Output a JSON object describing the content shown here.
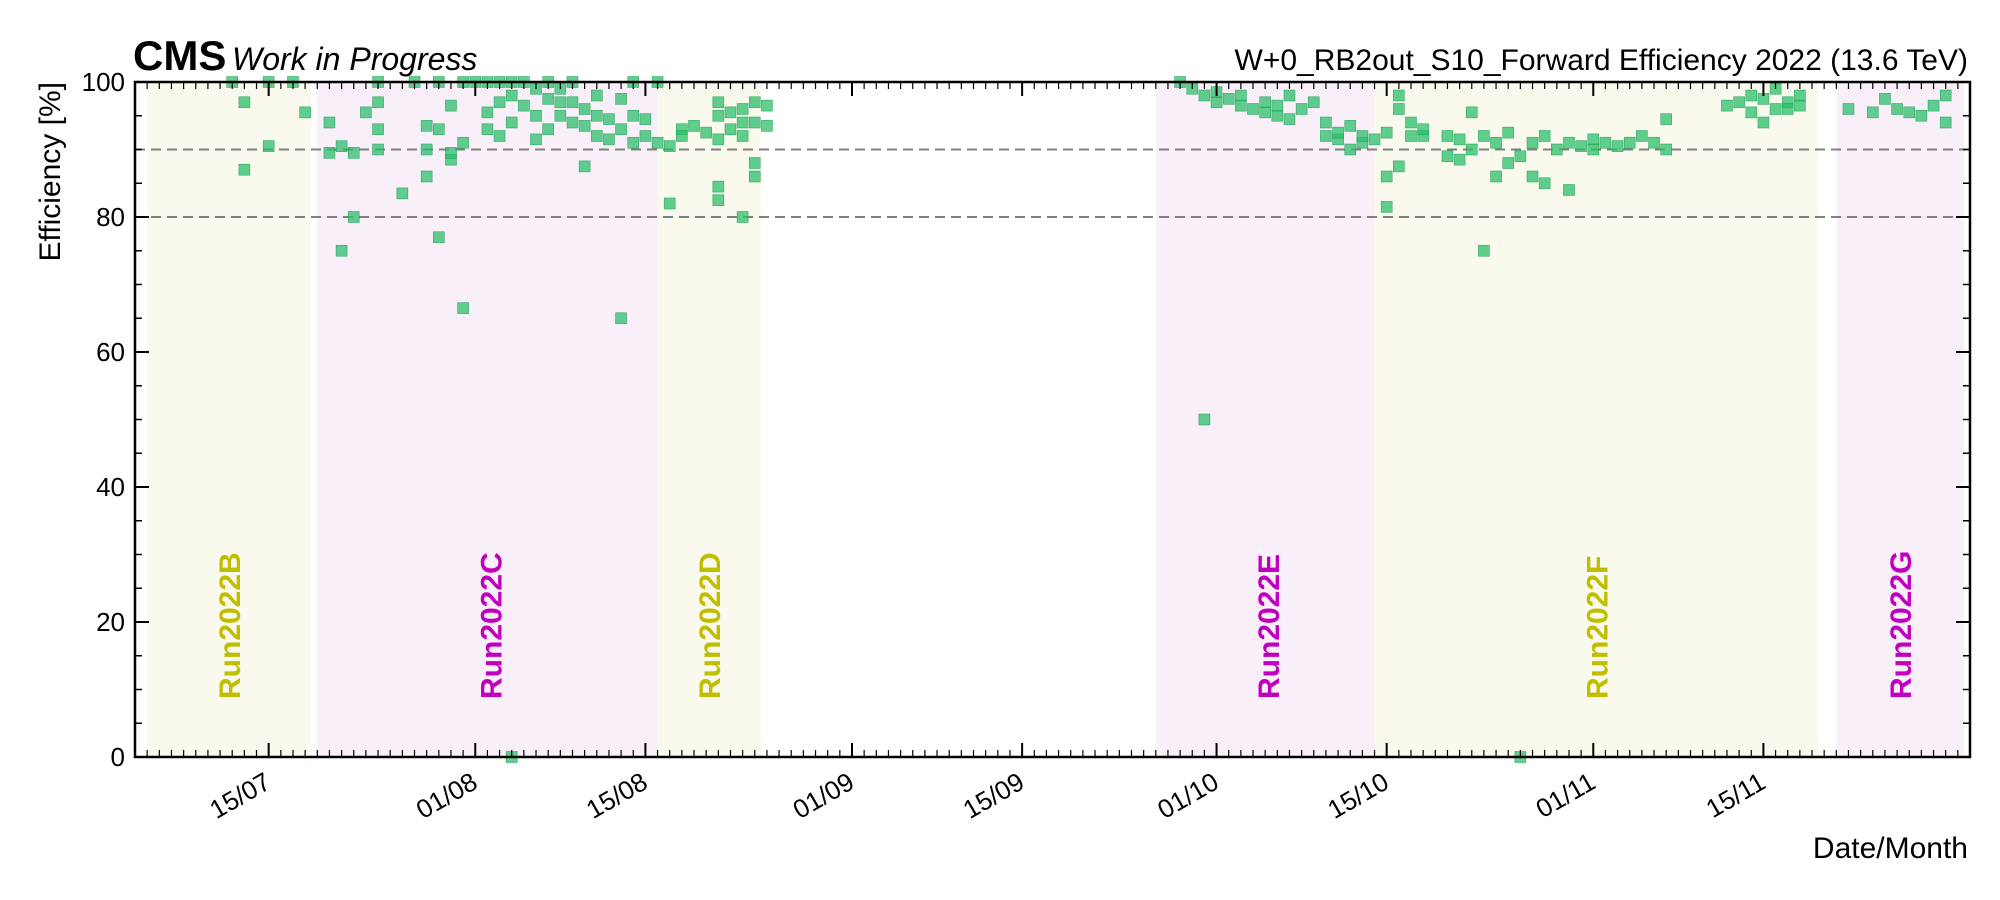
{
  "header": {
    "experiment": "CMS",
    "status": "Work in Progress",
    "title": "W+0_RB2out_S10_Forward Efficiency 2022 (13.6 TeV)"
  },
  "chart_data": {
    "type": "scatter",
    "title": "W+0_RB2out_S10_Forward Efficiency 2022 (13.6 TeV)",
    "xlabel": "Date/Month",
    "ylabel": "Efficiency [%]",
    "x_unit": "date (2022)",
    "xlim": [
      "2022-07-05",
      "2022-12-01"
    ],
    "ylim": [
      0,
      100
    ],
    "x_ticks": [
      {
        "date": "2022-07-15",
        "label": "15/07"
      },
      {
        "date": "2022-08-01",
        "label": "01/08"
      },
      {
        "date": "2022-08-15",
        "label": "15/08"
      },
      {
        "date": "2022-09-01",
        "label": "01/09"
      },
      {
        "date": "2022-09-15",
        "label": "15/09"
      },
      {
        "date": "2022-10-01",
        "label": "01/10"
      },
      {
        "date": "2022-10-15",
        "label": "15/10"
      },
      {
        "date": "2022-11-01",
        "label": "01/11"
      },
      {
        "date": "2022-11-15",
        "label": "15/11"
      }
    ],
    "y_ticks": [
      0,
      20,
      40,
      60,
      80,
      100
    ],
    "reference_lines": [
      90,
      80
    ],
    "marker_color": "#2bbf6a",
    "runs": [
      {
        "label": "Run2022B",
        "start": "2022-07-05",
        "end": "2022-07-18",
        "color": "#bfbf00",
        "bg": "#f9f9ee"
      },
      {
        "label": "Run2022C",
        "start": "2022-07-19",
        "end": "2022-08-16",
        "color": "#bf00bf",
        "bg": "#f9eff9"
      },
      {
        "label": "Run2022D",
        "start": "2022-08-16",
        "end": "2022-08-24",
        "color": "#bfbf00",
        "bg": "#f9f9ee"
      },
      {
        "label": "Run2022E",
        "start": "2022-09-26",
        "end": "2022-10-14",
        "color": "#bf00bf",
        "bg": "#f9eff9"
      },
      {
        "label": "Run2022F",
        "start": "2022-10-14",
        "end": "2022-11-19",
        "color": "#bfbf00",
        "bg": "#f9f9ee"
      },
      {
        "label": "Run2022G",
        "start": "2022-11-21",
        "end": "2022-12-01",
        "color": "#bf00bf",
        "bg": "#f9eff9"
      }
    ],
    "points": [
      [
        "2022-07-12",
        100
      ],
      [
        "2022-07-13",
        97
      ],
      [
        "2022-07-13",
        87
      ],
      [
        "2022-07-15",
        90.5
      ],
      [
        "2022-07-15",
        100
      ],
      [
        "2022-07-17",
        100
      ],
      [
        "2022-07-18",
        95.5
      ],
      [
        "2022-07-20",
        89.5
      ],
      [
        "2022-07-20",
        94
      ],
      [
        "2022-07-21",
        90.5
      ],
      [
        "2022-07-21",
        75
      ],
      [
        "2022-07-22",
        80
      ],
      [
        "2022-07-22",
        89.5
      ],
      [
        "2022-07-23",
        95.5
      ],
      [
        "2022-07-24",
        90
      ],
      [
        "2022-07-24",
        93
      ],
      [
        "2022-07-24",
        97
      ],
      [
        "2022-07-24",
        100
      ],
      [
        "2022-07-26",
        83.5
      ],
      [
        "2022-07-27",
        100
      ],
      [
        "2022-07-28",
        86
      ],
      [
        "2022-07-28",
        90
      ],
      [
        "2022-07-28",
        93.5
      ],
      [
        "2022-07-29",
        77
      ],
      [
        "2022-07-29",
        93
      ],
      [
        "2022-07-29",
        100
      ],
      [
        "2022-07-30",
        88.5
      ],
      [
        "2022-07-30",
        89.5
      ],
      [
        "2022-07-30",
        96.5
      ],
      [
        "2022-07-31",
        66.5
      ],
      [
        "2022-07-31",
        91
      ],
      [
        "2022-07-31",
        100
      ],
      [
        "2022-08-01",
        100
      ],
      [
        "2022-08-02",
        93
      ],
      [
        "2022-08-02",
        95.5
      ],
      [
        "2022-08-02",
        100
      ],
      [
        "2022-08-03",
        92
      ],
      [
        "2022-08-03",
        97
      ],
      [
        "2022-08-03",
        100
      ],
      [
        "2022-08-04",
        0
      ],
      [
        "2022-08-04",
        94
      ],
      [
        "2022-08-04",
        98
      ],
      [
        "2022-08-04",
        100
      ],
      [
        "2022-08-05",
        96.5
      ],
      [
        "2022-08-05",
        100
      ],
      [
        "2022-08-06",
        91.5
      ],
      [
        "2022-08-06",
        95
      ],
      [
        "2022-08-06",
        99
      ],
      [
        "2022-08-07",
        93
      ],
      [
        "2022-08-07",
        97.5
      ],
      [
        "2022-08-07",
        100
      ],
      [
        "2022-08-08",
        95
      ],
      [
        "2022-08-08",
        99
      ],
      [
        "2022-08-08",
        97
      ],
      [
        "2022-08-09",
        94
      ],
      [
        "2022-08-09",
        97
      ],
      [
        "2022-08-09",
        100
      ],
      [
        "2022-08-10",
        87.5
      ],
      [
        "2022-08-10",
        93.5
      ],
      [
        "2022-08-10",
        96
      ],
      [
        "2022-08-11",
        95
      ],
      [
        "2022-08-11",
        92
      ],
      [
        "2022-08-11",
        98
      ],
      [
        "2022-08-12",
        94.5
      ],
      [
        "2022-08-12",
        91.5
      ],
      [
        "2022-08-13",
        65
      ],
      [
        "2022-08-13",
        97.5
      ],
      [
        "2022-08-13",
        93
      ],
      [
        "2022-08-14",
        95
      ],
      [
        "2022-08-14",
        91
      ],
      [
        "2022-08-14",
        100
      ],
      [
        "2022-08-15",
        94.5
      ],
      [
        "2022-08-15",
        92
      ],
      [
        "2022-08-16",
        91
      ],
      [
        "2022-08-16",
        100
      ],
      [
        "2022-08-17",
        82
      ],
      [
        "2022-08-17",
        90.5
      ],
      [
        "2022-08-18",
        93
      ],
      [
        "2022-08-18",
        92
      ],
      [
        "2022-08-19",
        93.5
      ],
      [
        "2022-08-20",
        92.5
      ],
      [
        "2022-08-21",
        82.5
      ],
      [
        "2022-08-21",
        84.5
      ],
      [
        "2022-08-21",
        91.5
      ],
      [
        "2022-08-21",
        95
      ],
      [
        "2022-08-21",
        97
      ],
      [
        "2022-08-22",
        93
      ],
      [
        "2022-08-22",
        95.5
      ],
      [
        "2022-08-23",
        92
      ],
      [
        "2022-08-23",
        94
      ],
      [
        "2022-08-23",
        96
      ],
      [
        "2022-08-23",
        80
      ],
      [
        "2022-08-24",
        86
      ],
      [
        "2022-08-24",
        88
      ],
      [
        "2022-08-24",
        97
      ],
      [
        "2022-08-24",
        94
      ],
      [
        "2022-08-25",
        93.5
      ],
      [
        "2022-08-25",
        96.5
      ],
      [
        "2022-09-30",
        50
      ],
      [
        "2022-09-28",
        100
      ],
      [
        "2022-09-29",
        99
      ],
      [
        "2022-09-30",
        98
      ],
      [
        "2022-10-01",
        97
      ],
      [
        "2022-10-01",
        98.5
      ],
      [
        "2022-10-02",
        97.5
      ],
      [
        "2022-10-03",
        98
      ],
      [
        "2022-10-03",
        96.5
      ],
      [
        "2022-10-04",
        96
      ],
      [
        "2022-10-05",
        95.5
      ],
      [
        "2022-10-05",
        97
      ],
      [
        "2022-10-06",
        95
      ],
      [
        "2022-10-06",
        96.5
      ],
      [
        "2022-10-07",
        94.5
      ],
      [
        "2022-10-07",
        98
      ],
      [
        "2022-10-08",
        96
      ],
      [
        "2022-10-09",
        97
      ],
      [
        "2022-10-10",
        94
      ],
      [
        "2022-10-10",
        92
      ],
      [
        "2022-10-11",
        91.5
      ],
      [
        "2022-10-11",
        92.5
      ],
      [
        "2022-10-12",
        90
      ],
      [
        "2022-10-12",
        93.5
      ],
      [
        "2022-10-13",
        91
      ],
      [
        "2022-10-13",
        92
      ],
      [
        "2022-10-14",
        91.5
      ],
      [
        "2022-10-15",
        81.5
      ],
      [
        "2022-10-15",
        86
      ],
      [
        "2022-10-15",
        92.5
      ],
      [
        "2022-10-16",
        87.5
      ],
      [
        "2022-10-16",
        96
      ],
      [
        "2022-10-16",
        98
      ],
      [
        "2022-10-17",
        92
      ],
      [
        "2022-10-17",
        94
      ],
      [
        "2022-10-18",
        92
      ],
      [
        "2022-10-18",
        93
      ],
      [
        "2022-10-20",
        92
      ],
      [
        "2022-10-20",
        89
      ],
      [
        "2022-10-21",
        91.5
      ],
      [
        "2022-10-21",
        88.5
      ],
      [
        "2022-10-22",
        90
      ],
      [
        "2022-10-22",
        95.5
      ],
      [
        "2022-10-23",
        92
      ],
      [
        "2022-10-23",
        75
      ],
      [
        "2022-10-24",
        91
      ],
      [
        "2022-10-24",
        86
      ],
      [
        "2022-10-25",
        92.5
      ],
      [
        "2022-10-25",
        88
      ],
      [
        "2022-10-26",
        0
      ],
      [
        "2022-10-26",
        89
      ],
      [
        "2022-10-27",
        91
      ],
      [
        "2022-10-27",
        86
      ],
      [
        "2022-10-28",
        92
      ],
      [
        "2022-10-28",
        85
      ],
      [
        "2022-10-29",
        90
      ],
      [
        "2022-10-30",
        91
      ],
      [
        "2022-10-30",
        84
      ],
      [
        "2022-10-31",
        90.5
      ],
      [
        "2022-11-01",
        91.5
      ],
      [
        "2022-11-01",
        90
      ],
      [
        "2022-11-02",
        91
      ],
      [
        "2022-11-03",
        90.5
      ],
      [
        "2022-11-04",
        91
      ],
      [
        "2022-11-05",
        92
      ],
      [
        "2022-11-06",
        91
      ],
      [
        "2022-11-07",
        90
      ],
      [
        "2022-11-07",
        94.5
      ],
      [
        "2022-11-12",
        96.5
      ],
      [
        "2022-11-13",
        97
      ],
      [
        "2022-11-14",
        95.5
      ],
      [
        "2022-11-14",
        98
      ],
      [
        "2022-11-15",
        94
      ],
      [
        "2022-11-15",
        97.5
      ],
      [
        "2022-11-16",
        96
      ],
      [
        "2022-11-16",
        99
      ],
      [
        "2022-11-17",
        97
      ],
      [
        "2022-11-17",
        96
      ],
      [
        "2022-11-18",
        98
      ],
      [
        "2022-11-18",
        96.5
      ],
      [
        "2022-11-22",
        96
      ],
      [
        "2022-11-24",
        95.5
      ],
      [
        "2022-11-25",
        97.5
      ],
      [
        "2022-11-26",
        96
      ],
      [
        "2022-11-27",
        95.5
      ],
      [
        "2022-11-28",
        95
      ],
      [
        "2022-11-29",
        96.5
      ],
      [
        "2022-11-30",
        94
      ],
      [
        "2022-11-30",
        98
      ]
    ]
  }
}
